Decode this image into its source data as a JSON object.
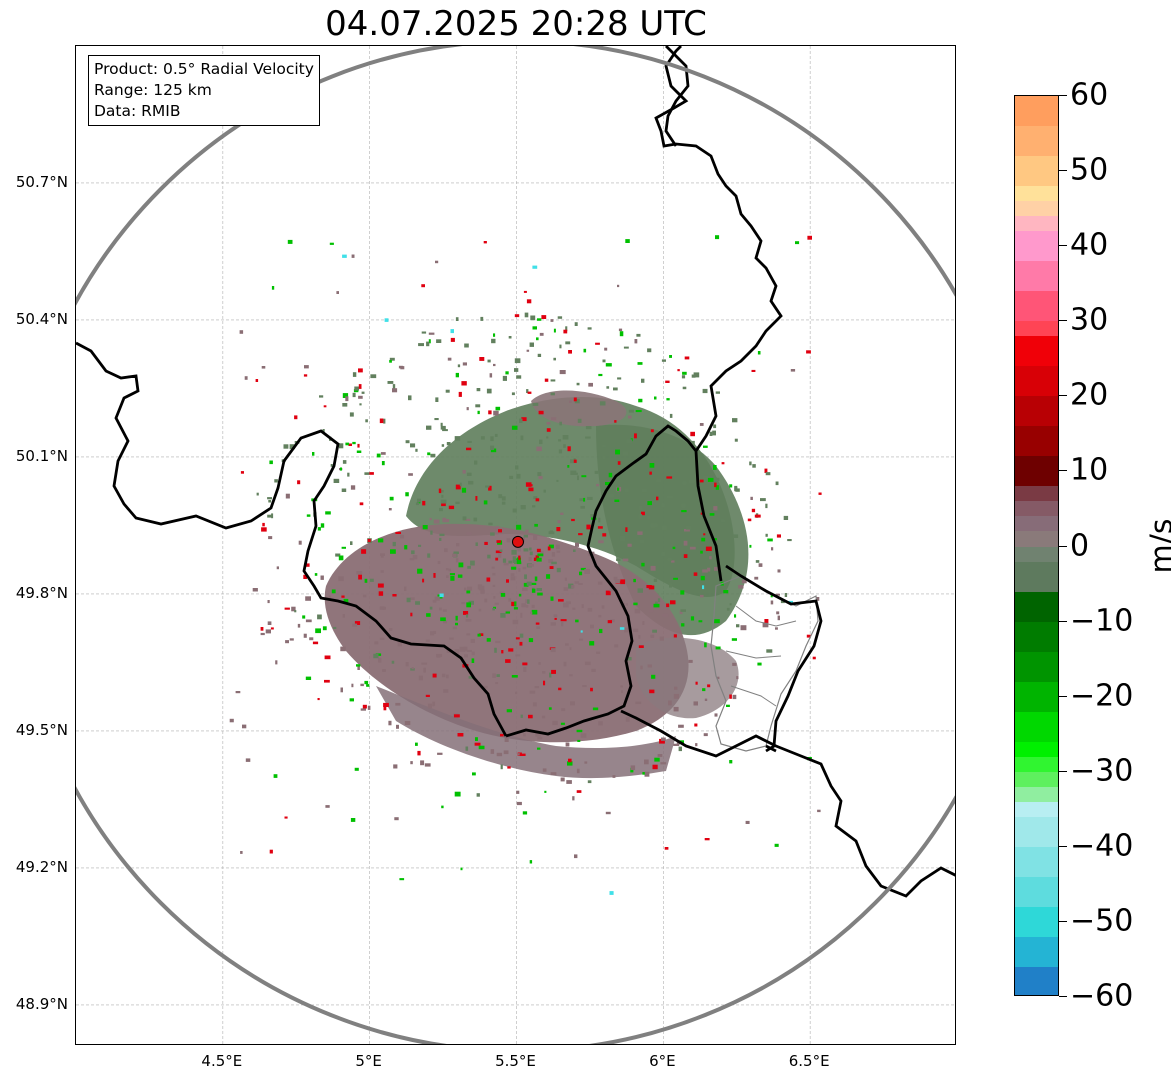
{
  "title": "04.07.2025 20:28 UTC",
  "info": {
    "product": "Product: 0.5° Radial Velocity",
    "range": "Range: 125 km",
    "data": "Data: RMIB"
  },
  "map": {
    "lat_labels": [
      "50.7°N",
      "50.4°N",
      "50.1°N",
      "49.8°N",
      "49.5°N",
      "49.2°N",
      "48.9°N"
    ],
    "lat_values": [
      50.7,
      50.4,
      50.1,
      49.8,
      49.5,
      49.2,
      48.9
    ],
    "lon_labels": [
      "4.5°E",
      "5°E",
      "5.5°E",
      "6°E",
      "6.5°E"
    ],
    "lon_values": [
      4.5,
      5.0,
      5.5,
      6.0,
      6.5
    ],
    "lon_range": [
      4.0,
      7.0
    ],
    "lat_range": [
      48.81,
      51.0
    ],
    "radar_site": {
      "lon": 5.505,
      "lat": 49.914
    },
    "range_ring_color": "#808080",
    "radar_marker_color": "#e01010",
    "grid": true
  },
  "colorbar": {
    "unit": "m/s",
    "min": -60,
    "max": 60,
    "tick_labels": [
      "60",
      "50",
      "40",
      "30",
      "20",
      "10",
      "0",
      "−10",
      "−20",
      "−30",
      "−40",
      "−50",
      "−60"
    ],
    "tick_values": [
      60,
      50,
      40,
      30,
      20,
      10,
      0,
      -10,
      -20,
      -30,
      -40,
      -50,
      -60
    ],
    "stops": [
      {
        "from": 56,
        "to": 60,
        "color": "#ff9e5e"
      },
      {
        "from": 52,
        "to": 56,
        "color": "#ffb070"
      },
      {
        "from": 48,
        "to": 52,
        "color": "#ffc882"
      },
      {
        "from": 46,
        "to": 48,
        "color": "#ffe19a"
      },
      {
        "from": 44,
        "to": 46,
        "color": "#ffd1a6"
      },
      {
        "from": 42,
        "to": 44,
        "color": "#ffb6c1"
      },
      {
        "from": 38,
        "to": 42,
        "color": "#ff99cc"
      },
      {
        "from": 34,
        "to": 38,
        "color": "#ff7aa8"
      },
      {
        "from": 30,
        "to": 34,
        "color": "#ff5577"
      },
      {
        "from": 28,
        "to": 30,
        "color": "#ff4455"
      },
      {
        "from": 24,
        "to": 28,
        "color": "#f00008"
      },
      {
        "from": 20,
        "to": 24,
        "color": "#d80006"
      },
      {
        "from": 16,
        "to": 20,
        "color": "#b80004"
      },
      {
        "from": 12,
        "to": 16,
        "color": "#980000"
      },
      {
        "from": 8,
        "to": 12,
        "color": "#6e0000"
      },
      {
        "from": 6,
        "to": 8,
        "color": "#7a3a44"
      },
      {
        "from": 4,
        "to": 6,
        "color": "#855a66"
      },
      {
        "from": 2,
        "to": 4,
        "color": "#876c78"
      },
      {
        "from": 0,
        "to": 2,
        "color": "#8a7a7a"
      },
      {
        "from": -2,
        "to": 0,
        "color": "#708270"
      },
      {
        "from": -6,
        "to": -2,
        "color": "#5e7a5e"
      },
      {
        "from": -10,
        "to": -6,
        "color": "#006400"
      },
      {
        "from": -14,
        "to": -10,
        "color": "#007c00"
      },
      {
        "from": -18,
        "to": -14,
        "color": "#009400"
      },
      {
        "from": -22,
        "to": -18,
        "color": "#00b400"
      },
      {
        "from": -26,
        "to": -22,
        "color": "#00d800"
      },
      {
        "from": -28,
        "to": -26,
        "color": "#00f000"
      },
      {
        "from": -30,
        "to": -28,
        "color": "#30f530"
      },
      {
        "from": -32,
        "to": -30,
        "color": "#5ef05e"
      },
      {
        "from": -34,
        "to": -32,
        "color": "#90eea0"
      },
      {
        "from": -36,
        "to": -34,
        "color": "#b8eef2"
      },
      {
        "from": -40,
        "to": -36,
        "color": "#a0e8ea"
      },
      {
        "from": -44,
        "to": -40,
        "color": "#80e2e4"
      },
      {
        "from": -48,
        "to": -44,
        "color": "#5edcde"
      },
      {
        "from": -52,
        "to": -48,
        "color": "#2ed8d8"
      },
      {
        "from": -56,
        "to": -52,
        "color": "#24b4d4"
      },
      {
        "from": -60,
        "to": -56,
        "color": "#2080c8"
      }
    ]
  },
  "echo_colors": {
    "inbound_dominant": "#62805e",
    "outbound_dominant": "#8a6e74",
    "speckle_green": "#00c000",
    "speckle_red": "#e00010",
    "speckle_cyan": "#40e0e8"
  }
}
